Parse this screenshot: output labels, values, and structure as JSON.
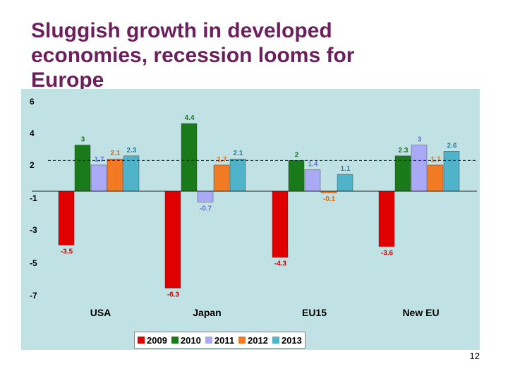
{
  "slide": {
    "title": "Sluggish growth in developed economies, recession looms for Europe",
    "page_number": "12"
  },
  "colors": {
    "2009": "#e00000",
    "2010": "#1a7a1a",
    "2011": "#a9a9f5",
    "2012": "#f27a22",
    "2013": "#4fb3c9"
  },
  "chart_data": {
    "type": "bar",
    "title": "",
    "xlabel": "",
    "ylabel": "",
    "categories": [
      "USA",
      "Japan",
      "EU15",
      "New EU"
    ],
    "y_tick_labels": [
      "6",
      "4",
      "2",
      "-1",
      "-3",
      "-5",
      "-7"
    ],
    "ylim": [
      -7,
      6
    ],
    "reference_line": 2,
    "grid": false,
    "legend_position": "bottom",
    "series": [
      {
        "name": "2009",
        "values": [
          -3.5,
          -6.3,
          -4.3,
          -3.6
        ],
        "labels": [
          "-3.5",
          "-6.3",
          "-4.3",
          "-3.6"
        ]
      },
      {
        "name": "2010",
        "values": [
          3,
          4.4,
          2,
          2.3
        ],
        "labels": [
          "3",
          "4.4",
          "2",
          "2.3"
        ]
      },
      {
        "name": "2011",
        "values": [
          1.7,
          -0.7,
          1.4,
          3
        ],
        "labels": [
          "1.7",
          "-0.7",
          "1.4",
          "3"
        ]
      },
      {
        "name": "2012",
        "values": [
          2.1,
          1.7,
          -0.1,
          1.7
        ],
        "labels": [
          "2.1",
          "1.7",
          "-0.1",
          "1.7"
        ]
      },
      {
        "name": "2013",
        "values": [
          2.3,
          2.1,
          1.1,
          2.6
        ],
        "labels": [
          "2.3",
          "2.1",
          "1.1",
          "2.6"
        ]
      }
    ]
  }
}
